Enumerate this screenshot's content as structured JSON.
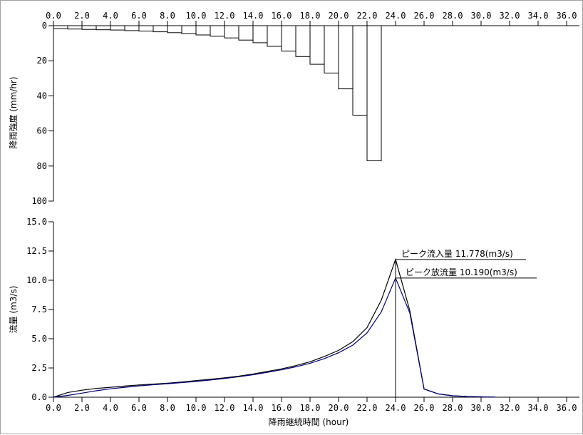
{
  "chart_data": [
    {
      "type": "bar",
      "x_label": "",
      "ylabel": "降雨強度 (mm/hr)",
      "x_ticks": [
        "0.0",
        "2.0",
        "4.0",
        "6.0",
        "8.0",
        "10.0",
        "12.0",
        "14.0",
        "16.0",
        "18.0",
        "20.0",
        "22.0",
        "24.0",
        "26.0",
        "28.0",
        "30.0",
        "32.0",
        "34.0",
        "36.0"
      ],
      "y_ticks": [
        "0",
        "20",
        "40",
        "60",
        "80",
        "100"
      ],
      "xlim": [
        0,
        36.9
      ],
      "ylim": [
        0,
        100
      ],
      "y_inverted": true,
      "hours_start": [
        0,
        1,
        2,
        3,
        4,
        5,
        6,
        7,
        8,
        9,
        10,
        11,
        12,
        13,
        14,
        15,
        16,
        17,
        18,
        19,
        20,
        21,
        22,
        23
      ],
      "values": [
        1.7,
        1.9,
        2.1,
        2.3,
        2.5,
        2.8,
        3.1,
        3.5,
        4.0,
        4.6,
        5.3,
        6.0,
        7.0,
        8.2,
        9.7,
        11.8,
        14.5,
        17.6,
        22.0,
        27.0,
        36.0,
        51.0,
        77.0,
        0
      ]
    },
    {
      "type": "line",
      "xlabel": "降雨継続時間 (hour)",
      "ylabel": "流量 (m3/s)",
      "x_ticks": [
        "0.0",
        "2.0",
        "4.0",
        "6.0",
        "8.0",
        "10.0",
        "12.0",
        "14.0",
        "16.0",
        "18.0",
        "20.0",
        "22.0",
        "24.0",
        "26.0",
        "28.0",
        "30.0",
        "32.0",
        "34.0",
        "36.0"
      ],
      "y_ticks": [
        "0.0",
        "2.5",
        "5.0",
        "7.5",
        "10.0",
        "12.5",
        "15.0"
      ],
      "xlim": [
        0,
        36.9
      ],
      "ylim": [
        0,
        15
      ],
      "series": [
        {
          "color": "#000000",
          "x": [
            0,
            1,
            2,
            3,
            4,
            5,
            6,
            7,
            8,
            9,
            10,
            11,
            12,
            13,
            14,
            15,
            16,
            17,
            18,
            19,
            20,
            21,
            22,
            23,
            24,
            25,
            26,
            27,
            28,
            29,
            30,
            31
          ],
          "y": [
            0,
            0.4,
            0.6,
            0.75,
            0.85,
            0.95,
            1.05,
            1.12,
            1.2,
            1.3,
            1.42,
            1.53,
            1.65,
            1.8,
            1.98,
            2.2,
            2.42,
            2.7,
            3.03,
            3.48,
            4.0,
            4.75,
            5.95,
            8.3,
            11.778,
            7.4,
            0.7,
            0.28,
            0.12,
            0.06,
            0.03,
            0.01
          ]
        },
        {
          "color": "#00007a",
          "x": [
            0,
            1,
            2,
            3,
            4,
            5,
            6,
            7,
            8,
            9,
            10,
            11,
            12,
            13,
            14,
            15,
            16,
            17,
            18,
            19,
            20,
            21,
            22,
            23,
            24,
            25,
            26,
            27,
            28,
            29,
            30,
            31
          ],
          "y": [
            0,
            0.15,
            0.35,
            0.55,
            0.72,
            0.85,
            0.97,
            1.07,
            1.15,
            1.25,
            1.35,
            1.47,
            1.6,
            1.75,
            1.92,
            2.12,
            2.35,
            2.6,
            2.9,
            3.3,
            3.8,
            4.45,
            5.5,
            7.3,
            10.19,
            7.2,
            0.7,
            0.28,
            0.12,
            0.06,
            0.03,
            0.01
          ]
        }
      ],
      "annotations": [
        {
          "label": "ピーク流入量 11.778(m3/s)",
          "x": 24.0,
          "y": 11.778
        },
        {
          "label": "ピーク放流量 10.190(m3/s)",
          "x": 24.0,
          "y": 10.19
        }
      ]
    }
  ]
}
